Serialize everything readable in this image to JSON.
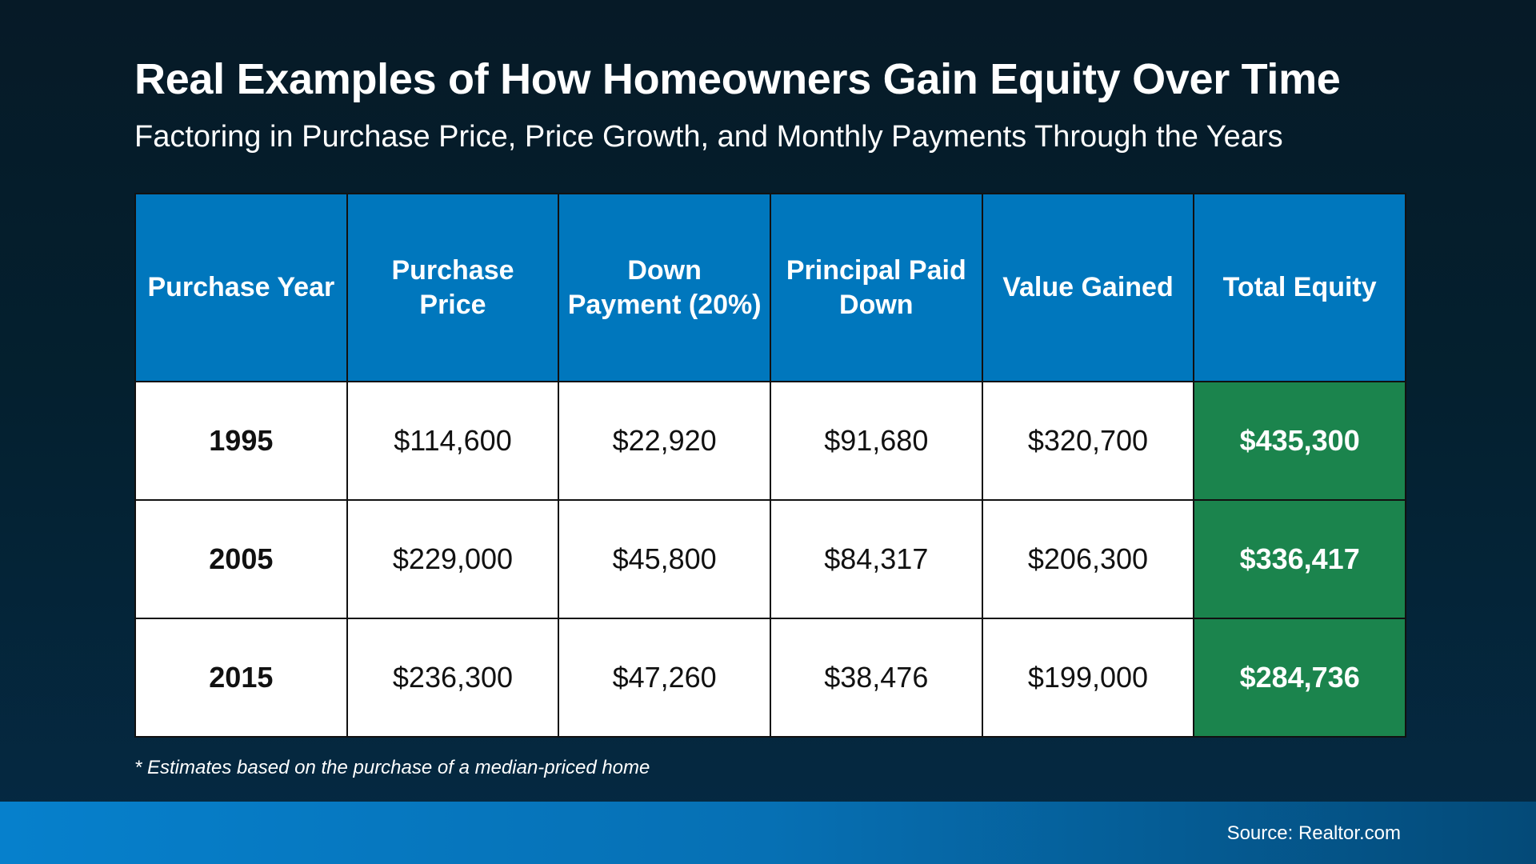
{
  "title": "Real Examples of How Homeowners Gain Equity Over Time",
  "subtitle": "Factoring in Purchase Price, Price Growth, and Monthly Payments Through the Years",
  "table": {
    "headers": [
      "Purchase Year",
      "Purchase Price",
      "Down Payment (20%)",
      "Principal Paid Down",
      "Value Gained",
      "Total Equity"
    ],
    "rows": [
      [
        "1995",
        "$114,600",
        "$22,920",
        "$91,680",
        "$320,700",
        "$435,300"
      ],
      [
        "2005",
        "$229,000",
        "$45,800",
        "$84,317",
        "$206,300",
        "$336,417"
      ],
      [
        "2015",
        "$236,300",
        "$47,260",
        "$38,476",
        "$199,000",
        "$284,736"
      ]
    ]
  },
  "footnote": "* Estimates based on the purchase of a median-priced home",
  "source": "Source: Realtor.com",
  "colors": {
    "header": "#0077bd",
    "equity": "#1b844d",
    "background": "#04202f"
  }
}
